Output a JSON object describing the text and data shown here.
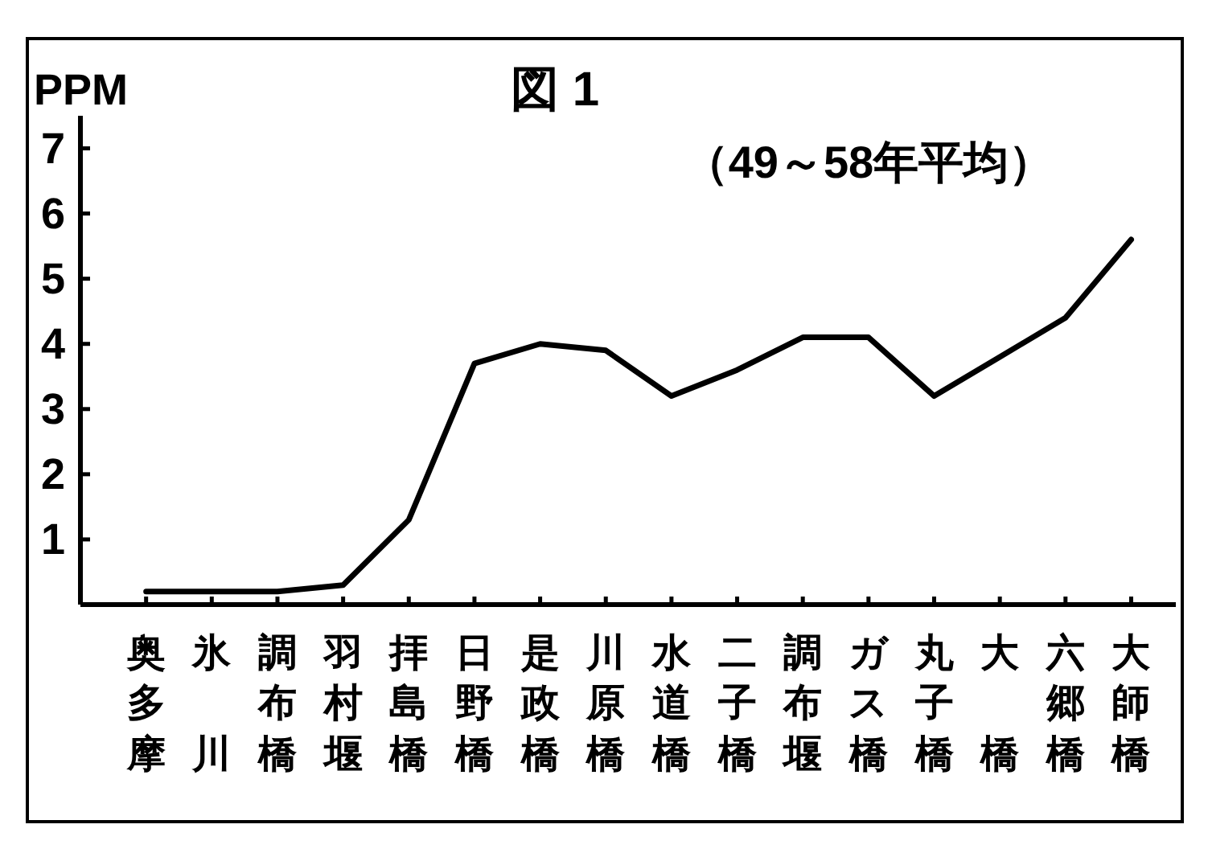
{
  "chart_data": {
    "type": "line",
    "title": "図 1",
    "subtitle": "（49～58年平均）",
    "ylabel": "PPM",
    "categories": [
      "奥多摩",
      "氷川",
      "調布橋",
      "羽村堰",
      "拝島橋",
      "日野橋",
      "是政橋",
      "川原橋",
      "水道橋",
      "二子橋",
      "調布堰",
      "ガス橋",
      "丸子橋",
      "大橋",
      "六郷橋",
      "大師橋"
    ],
    "series": [
      {
        "color": "#000000",
        "values": [
          0.2,
          0.2,
          0.2,
          0.3,
          1.3,
          3.7,
          4.0,
          3.9,
          3.2,
          3.6,
          4.1,
          4.1,
          3.2,
          3.8,
          4.4,
          5.6
        ]
      }
    ],
    "ylim": [
      0,
      7.5
    ],
    "yticks": [
      1,
      2,
      3,
      4,
      5,
      6,
      7
    ]
  }
}
